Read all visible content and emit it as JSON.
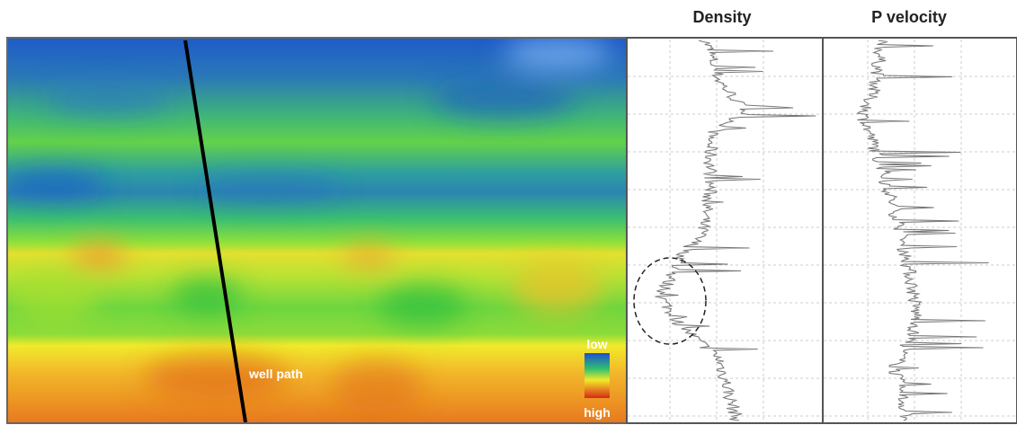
{
  "headers": {
    "density": "Density",
    "p_velocity": "P velocity"
  },
  "section": {
    "well_label": "well path",
    "colorbar": {
      "low": "low",
      "high": "high"
    }
  }
}
